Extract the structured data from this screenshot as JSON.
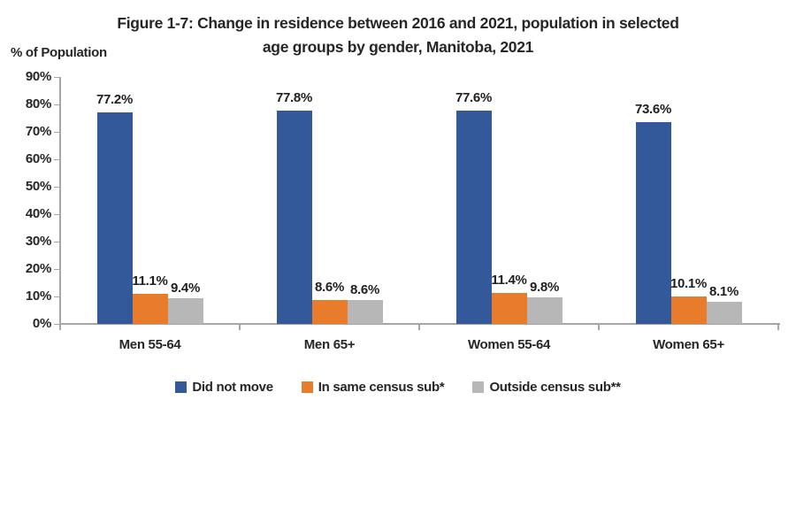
{
  "figure": {
    "title_full": "Figure 1-7: Change in residence between 2016 and 2021, population in selected age groups by gender, Manitoba, 2021"
  },
  "chart_data": {
    "type": "bar",
    "title": "Figure 1-7: Change in residence between 2016 and 2021, population in selected age groups by gender, Manitoba, 2021",
    "title_lines": [
      "Figure 1-7: Change in residence between 2016 and 2021, population in selected",
      "age groups by gender, Manitoba, 2021"
    ],
    "ylabel": "% of Population",
    "xlabel": "",
    "categories": [
      "Men 55-64",
      "Men 65+",
      "Women 55-64",
      "Women 65+"
    ],
    "series": [
      {
        "name": "Did not move",
        "color": "#34599B",
        "values": [
          77.2,
          77.8,
          77.6,
          73.6
        ],
        "labels": [
          "77.2%",
          "77.8%",
          "77.6%",
          "73.6%"
        ]
      },
      {
        "name": "In same census sub*",
        "color": "#E87C2A",
        "values": [
          11.1,
          8.6,
          11.4,
          10.1
        ],
        "labels": [
          "11.1%",
          "8.6%",
          "11.4%",
          "10.1%"
        ]
      },
      {
        "name": "Outside census sub**",
        "color": "#B7B7B7",
        "values": [
          9.4,
          8.6,
          9.8,
          8.1
        ],
        "labels": [
          "9.4%",
          "8.6%",
          "9.8%",
          "8.1%"
        ]
      }
    ],
    "ylim": [
      0,
      90
    ],
    "y_tick_labels": [
      "0%",
      "10%",
      "20%",
      "30%",
      "40%",
      "50%",
      "60%",
      "70%",
      "80%",
      "90%"
    ],
    "grid": false,
    "legend_position": "bottom",
    "axis_color": "#A6A6A6",
    "text_color": "#262626"
  }
}
